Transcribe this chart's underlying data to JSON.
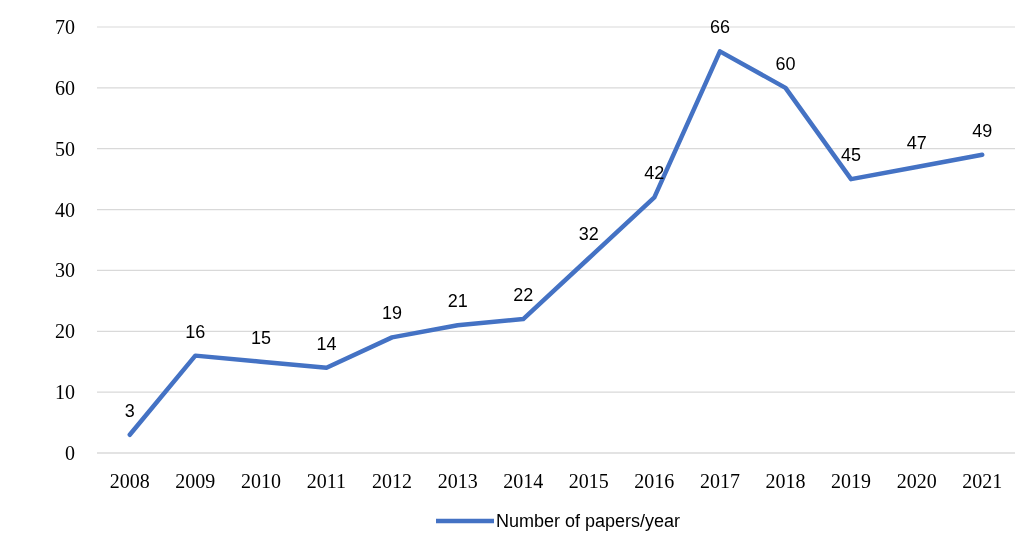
{
  "chart_data": {
    "type": "line",
    "categories": [
      "2008",
      "2009",
      "2010",
      "2011",
      "2012",
      "2013",
      "2014",
      "2015",
      "2016",
      "2017",
      "2018",
      "2019",
      "2020",
      "2021"
    ],
    "series": [
      {
        "name": "Number of papers/year",
        "color": "#4472c4",
        "values": [
          3,
          16,
          15,
          14,
          19,
          21,
          22,
          32,
          42,
          66,
          60,
          45,
          47,
          49
        ]
      }
    ],
    "ylim": [
      0,
      70
    ],
    "yticks": [
      0,
      10,
      20,
      30,
      40,
      50,
      60,
      70
    ],
    "grid": "y",
    "legend": "bottom",
    "data_labels": true,
    "marker": "none",
    "line_style": "solid"
  }
}
